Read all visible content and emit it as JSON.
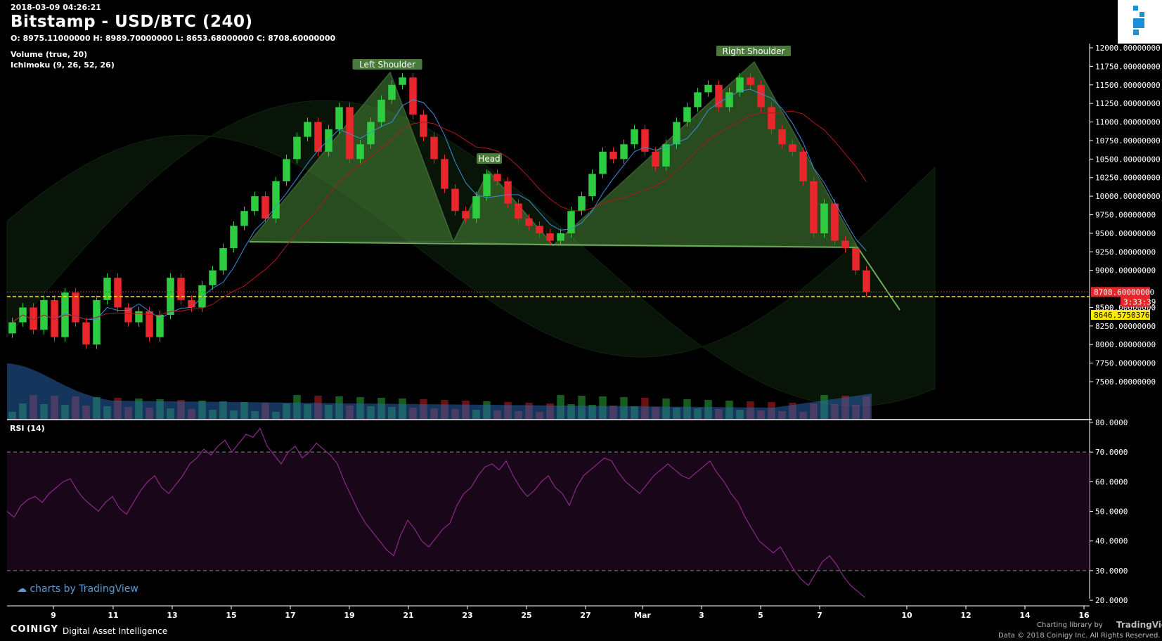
{
  "header": {
    "timestamp": "2018-03-09 04:26:21",
    "title": "Bitstamp - USD/BTC (240)",
    "ohlc": "O: 8975.11000000 H: 8989.70000000 L: 8653.68000000 C: 8708.60000000",
    "indicators": [
      "Volume (true, 20)",
      "Ichimoku (9, 26, 52, 26)"
    ]
  },
  "rsi_label": "RSI (14)",
  "watermark": "charts by TradingView",
  "footer": {
    "brand": "COINIGY",
    "tagline": "Digital Asset Intelligence",
    "charting_credit": "Charting library by",
    "tradingview": "TradingView",
    "data_credit": "Data © 2018 Coinigy Inc. All Rights Reserved."
  },
  "price_labels": {
    "last_price": "8708.60000000",
    "countdown": "3:33:39",
    "line_price": "8646.57503769"
  },
  "colors": {
    "up": "#2ecc40",
    "down": "#e8262b",
    "pattern_fill": "#4a8a3a",
    "rsi": "#8a2a8a",
    "tenkan": "#3a8fd8",
    "kijun": "#b01a1a"
  },
  "chart_data": [
    {
      "type": "candlestick",
      "title": "Bitstamp - USD/BTC (240)",
      "ylim": [
        7250,
        12100
      ],
      "y_ticks": [
        "12000.00000000",
        "11750.00000000",
        "11500.00000000",
        "11250.00000000",
        "11000.00000000",
        "10750.00000000",
        "10500.00000000",
        "10250.00000000",
        "10000.00000000",
        "9750.00000000",
        "9500.00000000",
        "9250.00000000",
        "9000.00000000",
        "8500.00000000",
        "8250.00000000",
        "8000.00000000",
        "7750.00000000",
        "7500.00000000"
      ],
      "x_ticks": [
        "9",
        "11",
        "13",
        "15",
        "17",
        "19",
        "21",
        "23",
        "25",
        "27",
        "Mar",
        "3",
        "5",
        "7",
        "10",
        "12",
        "14",
        "16"
      ],
      "close_approx": [
        8300,
        8500,
        8200,
        8600,
        8100,
        8700,
        8300,
        8000,
        8600,
        8900,
        8500,
        8300,
        8450,
        8100,
        8400,
        8900,
        8600,
        8500,
        8800,
        9000,
        9300,
        9600,
        9800,
        10000,
        9700,
        10200,
        10500,
        10800,
        11000,
        10600,
        10900,
        11200,
        10500,
        10700,
        11000,
        11300,
        11500,
        11600,
        11100,
        10800,
        10500,
        10100,
        9800,
        9700,
        10000,
        10300,
        10200,
        9900,
        9700,
        9600,
        9500,
        9400,
        9500,
        9800,
        10000,
        10300,
        10600,
        10500,
        10700,
        10900,
        10600,
        10400,
        10700,
        11000,
        11200,
        11400,
        11500,
        11200,
        11400,
        11600,
        11500,
        11200,
        10900,
        10700,
        10600,
        10200,
        9500,
        9900,
        9400,
        9300,
        9000,
        8708.6
      ],
      "pattern_annotations": [
        "Left Shoulder",
        "Head",
        "Right Shoulder"
      ],
      "last_price": 8708.6,
      "horizontal_line": 8646.57503769
    },
    {
      "type": "line",
      "title": "RSI (14)",
      "ylim": [
        20,
        80
      ],
      "y_ticks": [
        "80.0000",
        "70.0000",
        "60.0000",
        "50.0000",
        "40.0000",
        "30.0000",
        "20.0000"
      ],
      "bands": [
        30,
        70
      ],
      "values": [
        50,
        48,
        52,
        54,
        55,
        53,
        56,
        58,
        60,
        61,
        57,
        54,
        52,
        50,
        53,
        55,
        51,
        49,
        53,
        57,
        60,
        62,
        58,
        56,
        59,
        62,
        66,
        68,
        71,
        69,
        72,
        74,
        70,
        73,
        76,
        75,
        78,
        72,
        69,
        66,
        70,
        72,
        68,
        70,
        73,
        71,
        69,
        66,
        60,
        55,
        50,
        46,
        43,
        40,
        37,
        35,
        42,
        47,
        44,
        40,
        38,
        41,
        44,
        46,
        52,
        56,
        58,
        62,
        65,
        66,
        64,
        67,
        62,
        58,
        55,
        57,
        60,
        62,
        58,
        56,
        52,
        58,
        62,
        64,
        66,
        68,
        67,
        63,
        60,
        58,
        56,
        59,
        62,
        64,
        66,
        64,
        62,
        61,
        63,
        65,
        67,
        63,
        60,
        56,
        53,
        48,
        44,
        40,
        38,
        36,
        38,
        34,
        30,
        27,
        25,
        29,
        33,
        35,
        32,
        28,
        25,
        23,
        21
      ]
    }
  ]
}
